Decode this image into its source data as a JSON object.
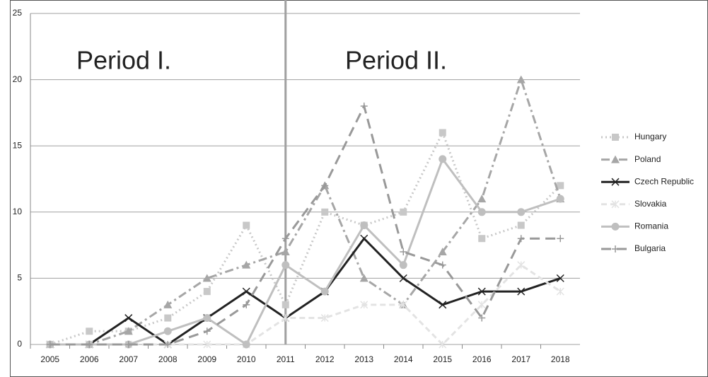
{
  "chart_data": {
    "type": "line",
    "categories": [
      "2005",
      "2006",
      "2007",
      "2008",
      "2009",
      "2010",
      "2011",
      "2012",
      "2013",
      "2014",
      "2015",
      "2016",
      "2017",
      "2018"
    ],
    "ylim": [
      0,
      25
    ],
    "yticks": [
      0,
      5,
      10,
      15,
      20,
      25
    ],
    "grid": true,
    "legend": "right",
    "period_divider": "2011",
    "annotations": [
      "Period I.",
      "Period II."
    ],
    "series": [
      {
        "name": "Hungary",
        "color": "#c8c8c8",
        "line_style": "dotted",
        "marker": "square",
        "values": [
          0,
          1,
          1,
          2,
          4,
          9,
          3,
          10,
          9,
          10,
          16,
          8,
          9,
          12
        ]
      },
      {
        "name": "Poland",
        "color": "#a6a6a6",
        "line_style": "dashdot",
        "marker": "triangle",
        "values": [
          0,
          0,
          1,
          3,
          5,
          6,
          7,
          12,
          5,
          3,
          7,
          11,
          20,
          11
        ]
      },
      {
        "name": "Czech Republic",
        "color": "#222222",
        "line_style": "solid",
        "marker": "x",
        "values": [
          0,
          0,
          2,
          0,
          2,
          4,
          2,
          4,
          8,
          5,
          3,
          4,
          4,
          5
        ]
      },
      {
        "name": "Slovakia",
        "color": "#e3e3e3",
        "line_style": "dashed",
        "marker": "star",
        "values": [
          0,
          0,
          0,
          0,
          0,
          0,
          2,
          2,
          3,
          3,
          0,
          3,
          6,
          4
        ]
      },
      {
        "name": "Romania",
        "color": "#bfbfbf",
        "line_style": "solid",
        "marker": "circle",
        "values": [
          0,
          0,
          0,
          1,
          2,
          0,
          6,
          4,
          9,
          6,
          14,
          10,
          10,
          11
        ]
      },
      {
        "name": "Bulgaria",
        "color": "#999999",
        "line_style": "longdash",
        "marker": "plus",
        "values": [
          0,
          0,
          0,
          0,
          1,
          3,
          8,
          12,
          18,
          7,
          6,
          2,
          8,
          8
        ]
      }
    ]
  }
}
